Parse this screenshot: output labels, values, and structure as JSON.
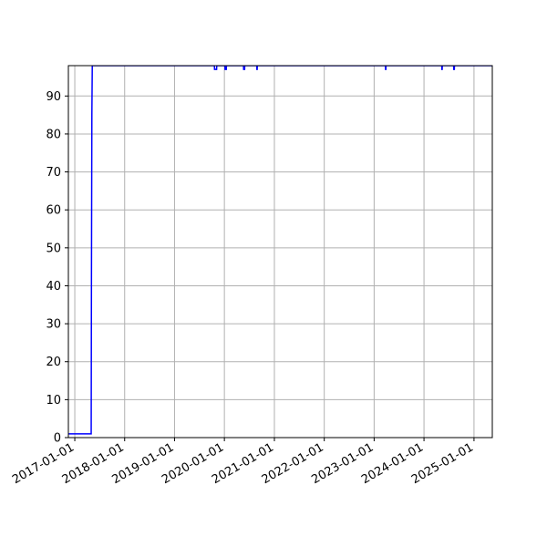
{
  "chart_data": {
    "type": "line",
    "title": "",
    "xlabel": "",
    "ylabel": "",
    "x_axis": "date",
    "xlim": [
      "2016-11-15",
      "2025-05-15"
    ],
    "ylim": [
      0,
      98
    ],
    "grid": true,
    "legend": "none",
    "x_ticks": [
      "2017-01-01",
      "2018-01-01",
      "2019-01-01",
      "2020-01-01",
      "2021-01-01",
      "2022-01-01",
      "2023-01-01",
      "2024-01-01",
      "2025-01-01"
    ],
    "y_ticks": [
      0,
      10,
      20,
      30,
      40,
      50,
      60,
      70,
      80,
      90
    ],
    "series": [
      {
        "color": "#0000ff",
        "points": [
          [
            "2016-11-15",
            1
          ],
          [
            "2017-05-01",
            1
          ],
          [
            "2017-05-03",
            42
          ],
          [
            "2017-05-06",
            85
          ],
          [
            "2017-05-09",
            98
          ],
          [
            "2019-10-20",
            98
          ],
          [
            "2019-10-21",
            97
          ],
          [
            "2019-11-05",
            97
          ],
          [
            "2019-11-06",
            98
          ],
          [
            "2020-01-05",
            98
          ],
          [
            "2020-01-06",
            97
          ],
          [
            "2020-01-15",
            97
          ],
          [
            "2020-01-16",
            98
          ],
          [
            "2020-05-20",
            98
          ],
          [
            "2020-05-21",
            97
          ],
          [
            "2020-05-28",
            97
          ],
          [
            "2020-05-29",
            98
          ],
          [
            "2020-08-25",
            98
          ],
          [
            "2020-08-26",
            97
          ],
          [
            "2020-08-28",
            97
          ],
          [
            "2020-08-29",
            98
          ],
          [
            "2023-03-25",
            98
          ],
          [
            "2023-03-26",
            97
          ],
          [
            "2023-03-28",
            97
          ],
          [
            "2023-03-29",
            98
          ],
          [
            "2024-05-10",
            98
          ],
          [
            "2024-05-11",
            97
          ],
          [
            "2024-05-13",
            97
          ],
          [
            "2024-05-14",
            98
          ],
          [
            "2024-08-05",
            98
          ],
          [
            "2024-08-06",
            97
          ],
          [
            "2024-08-10",
            97
          ],
          [
            "2024-08-11",
            98
          ],
          [
            "2025-05-15",
            98
          ]
        ]
      }
    ]
  }
}
